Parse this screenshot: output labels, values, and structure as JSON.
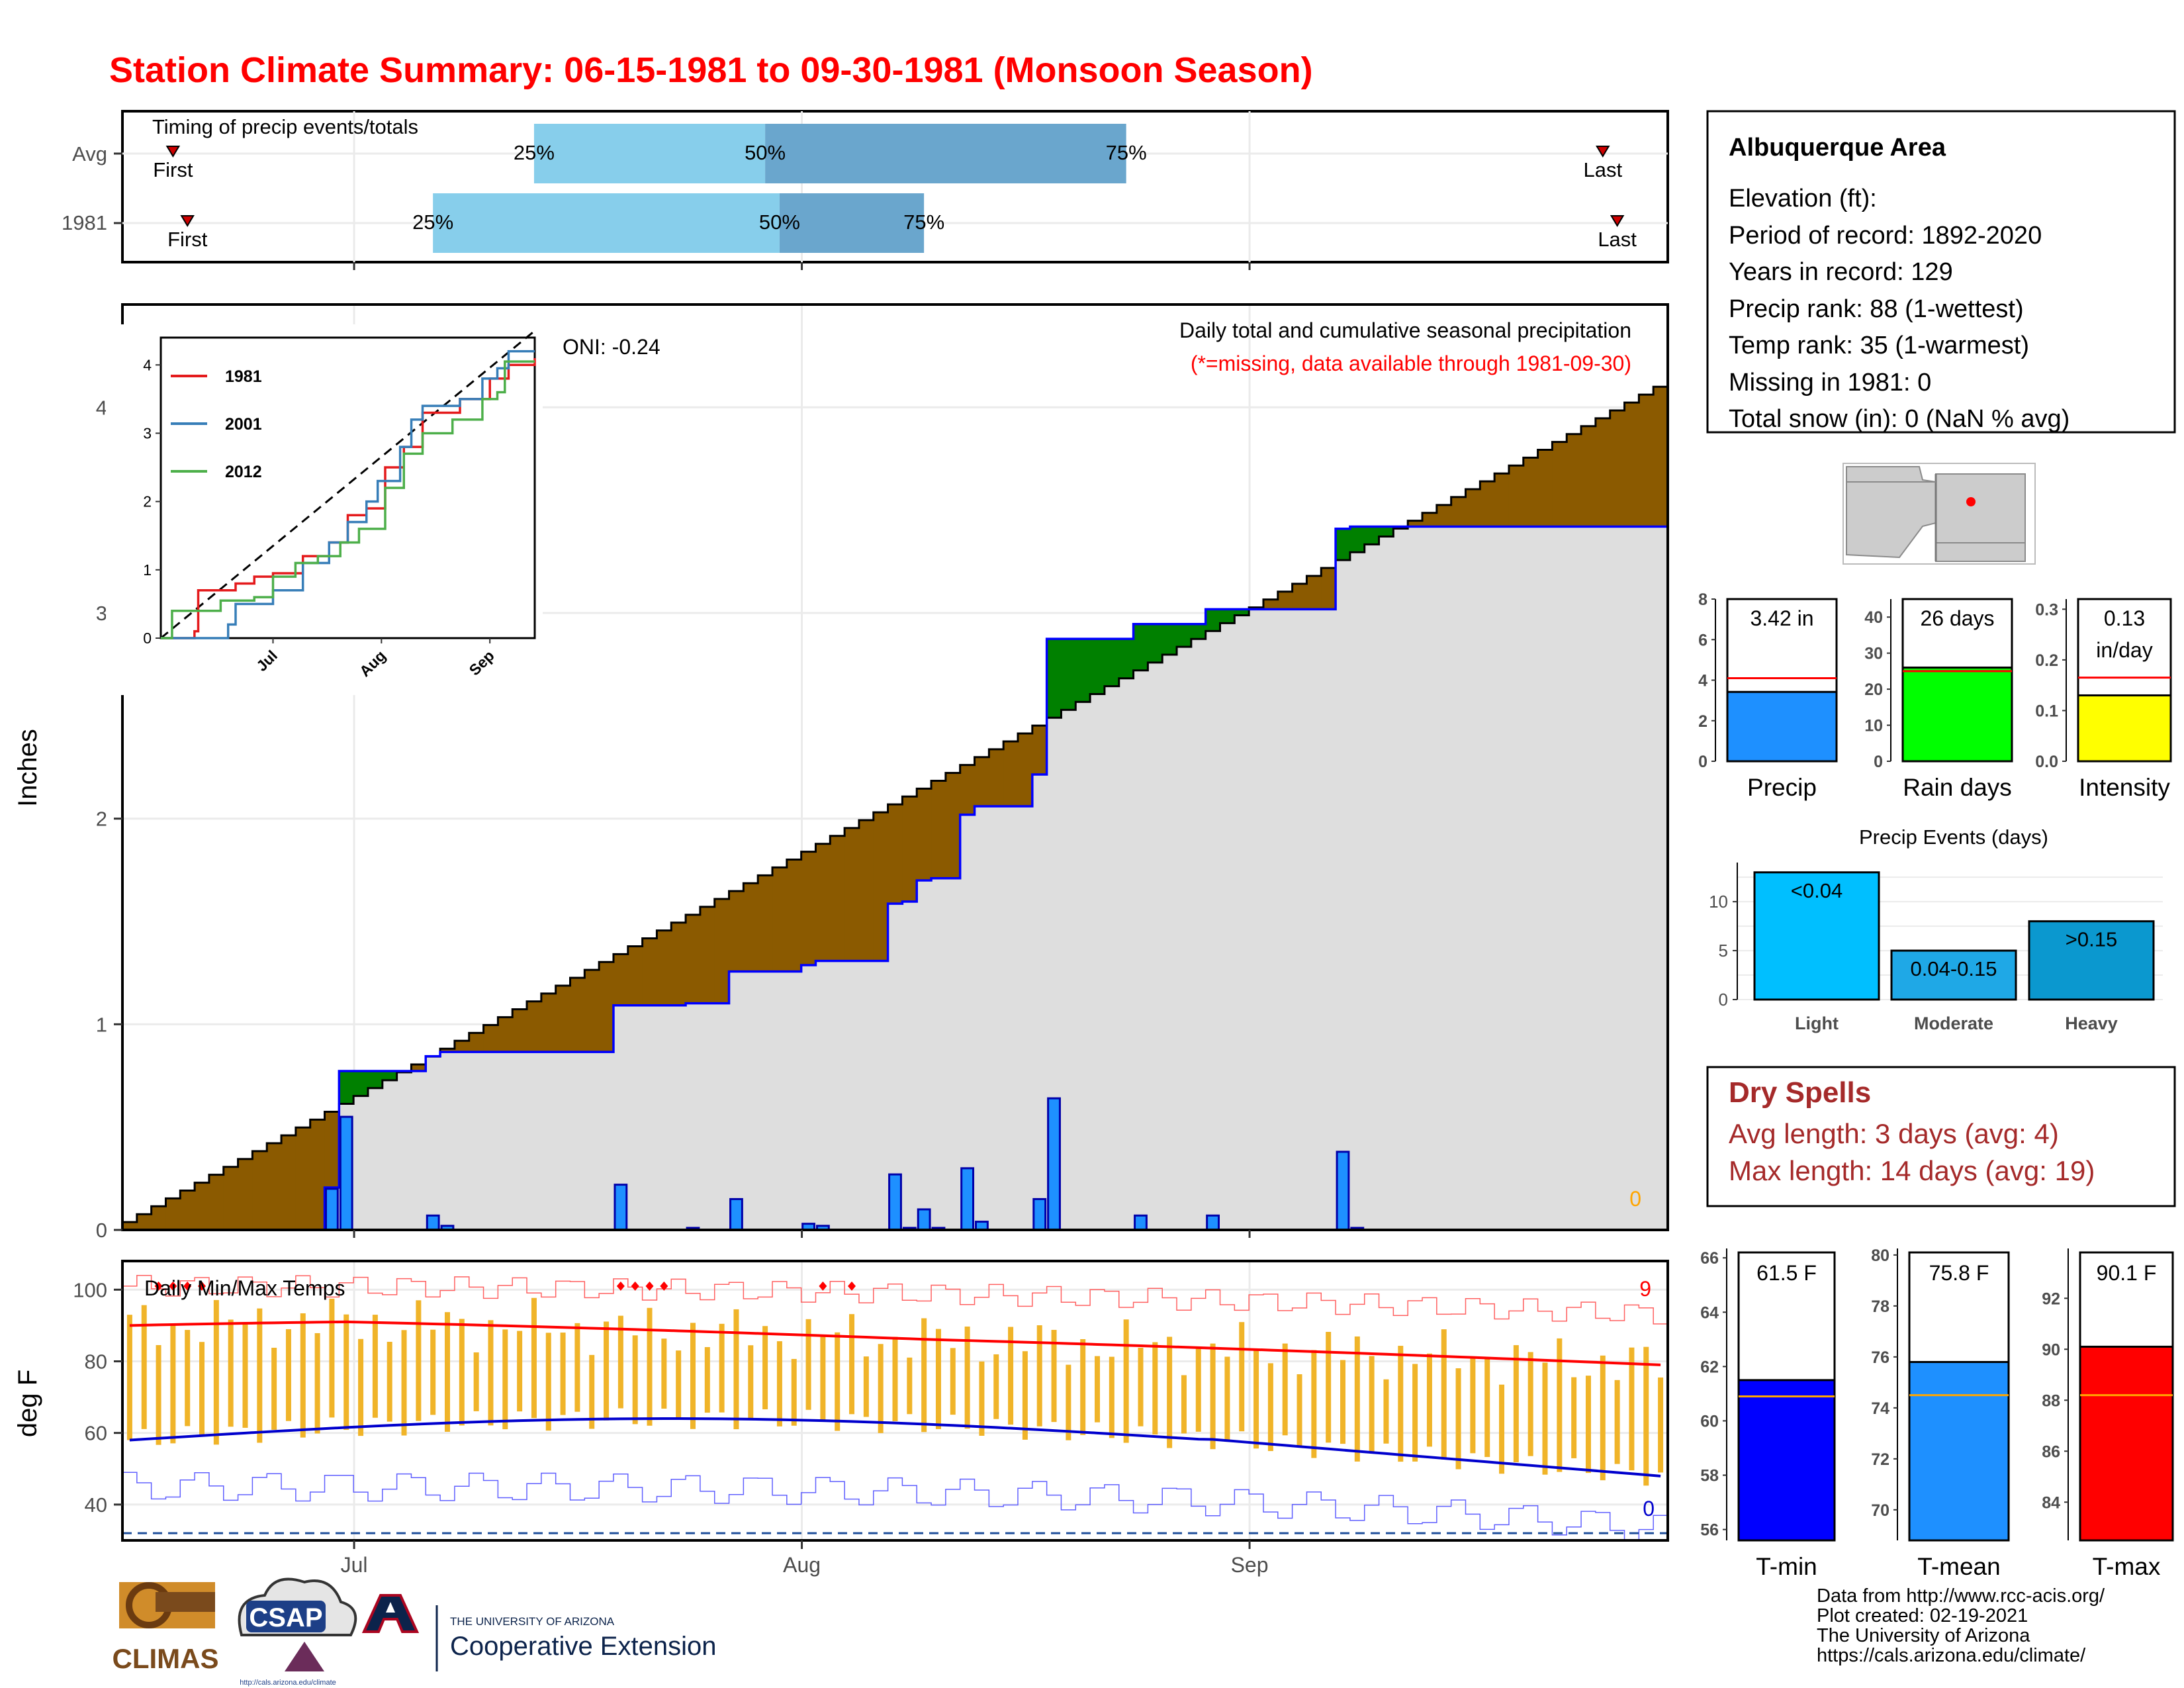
{
  "title": "Station Climate Summary: 06-15-1981 to 09-30-1981 (Monsoon Season)",
  "colors": {
    "title": "#ff0000",
    "quartile_light": "#87ceeb",
    "quartile_dark": "#6aa6cd",
    "surplus": "#008000",
    "deficit": "#8b5a00",
    "cum_fill": "#dedede",
    "daily_bar": "#1e90ff",
    "temp_bar": "#f0b429",
    "tmax_line": "#ff0000",
    "tmin_line": "#0000cd",
    "dry_spells": "#a52a2a",
    "precip_bar": "#1e90ff",
    "raindays_bar": "#00ff00",
    "intensity_bar": "#ffff00",
    "light_bar": "#00bfff",
    "moderate_bar": "#1fa8e6",
    "heavy_bar": "#0b98cf",
    "tmin_bar": "#0000ff",
    "tmean_bar": "#1e90ff",
    "tmax_bar": "#ff0000"
  },
  "timing": {
    "title": "Timing of precip events/totals",
    "rows": [
      {
        "label": "Avg",
        "first": "06-18",
        "last": "09-25",
        "q25": "07-13",
        "q50": "07-29",
        "q75": "08-23"
      },
      {
        "label": "1981",
        "first": "06-19",
        "last": "09-26",
        "q25": "07-06",
        "q50": "07-30",
        "q75": "08-09"
      }
    ],
    "first_label": "First",
    "last_label": "Last",
    "q_labels": [
      "25%",
      "50%",
      "75%"
    ]
  },
  "info": {
    "station": "Albuquerque Area",
    "lines": [
      "Elevation (ft):",
      "Period of record: 1892-2020",
      "Years in record: 129",
      "Precip rank: 88 (1-wettest)",
      "Temp rank: 35 (1-warmest)",
      "Missing in 1981: 0",
      "Total snow (in): 0 (NaN % avg)"
    ]
  },
  "main_text": {
    "oni": "ONI: -0.24",
    "subtitle": "Daily total and cumulative seasonal precipitation",
    "missing_note": "(*=missing, data available through 1981-09-30)",
    "ylabel": "Inches",
    "missing_count": "0"
  },
  "inset": {
    "legend": [
      "1981",
      "2001",
      "2012"
    ],
    "legend_colors": [
      "#e41a1c",
      "#377eb8",
      "#4daf4a"
    ],
    "y_ticks": [
      "0",
      "1",
      "2",
      "3",
      "4"
    ],
    "x_ticks": [
      "Jul",
      "Aug",
      "Sep"
    ]
  },
  "temps": {
    "title": "Daily Min/Max Temps",
    "ylabel": "deg F",
    "y_ticks": [
      "40",
      "60",
      "80",
      "100"
    ],
    "x_ticks": [
      "Jul",
      "Aug",
      "Sep"
    ],
    "hot_count": "9",
    "cold_count": "0"
  },
  "summary_bars": [
    {
      "label": "Precip",
      "value_text": "3.42 in",
      "value": 3.42,
      "avg": 4.1,
      "ymax": 8,
      "ticks": [
        "0",
        "2",
        "4",
        "6",
        "8"
      ]
    },
    {
      "label": "Rain days",
      "value_text": "26 days",
      "value": 26,
      "avg": 25,
      "ymax": 45,
      "ticks": [
        "0",
        "10",
        "20",
        "30",
        "40"
      ]
    },
    {
      "label": "Intensity",
      "value_text_1": "0.13",
      "value_text_2": "in/day",
      "value": 0.13,
      "avg": 0.165,
      "ymax": 0.32,
      "ticks": [
        "0.0",
        "0.1",
        "0.2",
        "0.3"
      ]
    }
  ],
  "events": {
    "title": "Precip Events (days)",
    "categories": [
      "Light",
      "Moderate",
      "Heavy"
    ],
    "values": [
      13,
      5,
      8
    ],
    "bar_labels": [
      "<0.04",
      "0.04-0.15",
      ">0.15"
    ],
    "y_ticks": [
      "0",
      "5",
      "10"
    ]
  },
  "dry_spells": {
    "title": "Dry Spells",
    "avg": "Avg length: 3 days (avg: 4)",
    "max": "Max length: 14 days (avg: 19)"
  },
  "temp_bars": [
    {
      "label": "T-min",
      "value_text": "61.5 F",
      "value": 61.5,
      "avg": 60.9,
      "ymin": 55.6,
      "ymax": 66.2,
      "ticks": [
        "56",
        "58",
        "60",
        "62",
        "64",
        "66"
      ]
    },
    {
      "label": "T-mean",
      "value_text": "75.8 F",
      "value": 75.8,
      "avg": 74.5,
      "ymin": 68.8,
      "ymax": 80.1,
      "ticks": [
        "70",
        "72",
        "74",
        "76",
        "78",
        "80"
      ]
    },
    {
      "label": "T-max",
      "value_text": "90.1 F",
      "value": 90.1,
      "avg": 88.2,
      "ymin": 82.5,
      "ymax": 93.8,
      "ticks": [
        "84",
        "86",
        "88",
        "90",
        "92"
      ]
    }
  ],
  "credits": [
    "Data from http://www.rcc-acis.org/",
    "Plot created: 02-19-2021",
    "The University of Arizona",
    "https://cals.arizona.edu/climate/"
  ],
  "logos": {
    "climas": "CLIMAS",
    "csap": "CSAP",
    "csap_url": "http://cals.arizona.edu/climate",
    "ua_line1": "THE UNIVERSITY OF ARIZONA",
    "ua_line2": "Cooperative Extension"
  },
  "chart_data": [
    {
      "type": "area",
      "title": "Daily total and cumulative seasonal precipitation",
      "ylabel": "Inches",
      "x_range": [
        "1981-06-15",
        "1981-09-30"
      ],
      "ylim": [
        0,
        4.4
      ],
      "cumulative_1981_end": 3.42,
      "cumulative_avg_end": 4.1,
      "daily_precip_1981": [
        {
          "date": "1981-06-29",
          "value": 0.2
        },
        {
          "date": "1981-06-30",
          "value": 0.55
        },
        {
          "date": "1981-07-06",
          "value": 0.07
        },
        {
          "date": "1981-07-07",
          "value": 0.02
        },
        {
          "date": "1981-07-19",
          "value": 0.22
        },
        {
          "date": "1981-07-24",
          "value": 0.01
        },
        {
          "date": "1981-07-27",
          "value": 0.15
        },
        {
          "date": "1981-08-01",
          "value": 0.03
        },
        {
          "date": "1981-08-02",
          "value": 0.02
        },
        {
          "date": "1981-08-07",
          "value": 0.27
        },
        {
          "date": "1981-08-08",
          "value": 0.01
        },
        {
          "date": "1981-08-09",
          "value": 0.1
        },
        {
          "date": "1981-08-10",
          "value": 0.01
        },
        {
          "date": "1981-08-12",
          "value": 0.3
        },
        {
          "date": "1981-08-13",
          "value": 0.04
        },
        {
          "date": "1981-08-17",
          "value": 0.15
        },
        {
          "date": "1981-08-18",
          "value": 0.64
        },
        {
          "date": "1981-08-24",
          "value": 0.07
        },
        {
          "date": "1981-08-29",
          "value": 0.07
        },
        {
          "date": "1981-09-07",
          "value": 0.38
        },
        {
          "date": "1981-09-08",
          "value": 0.01
        }
      ]
    },
    {
      "type": "line",
      "title": "Daily Min/Max Temps",
      "ylabel": "deg F",
      "ylim": [
        30,
        108
      ],
      "series": [
        {
          "name": "Avg max",
          "start": 90,
          "end": 79
        },
        {
          "name": "Avg min",
          "start": 58,
          "end": 51
        }
      ]
    },
    {
      "type": "bar",
      "title": "Precip Events (days)",
      "categories": [
        "Light",
        "Moderate",
        "Heavy"
      ],
      "values": [
        13,
        5,
        8
      ]
    }
  ]
}
